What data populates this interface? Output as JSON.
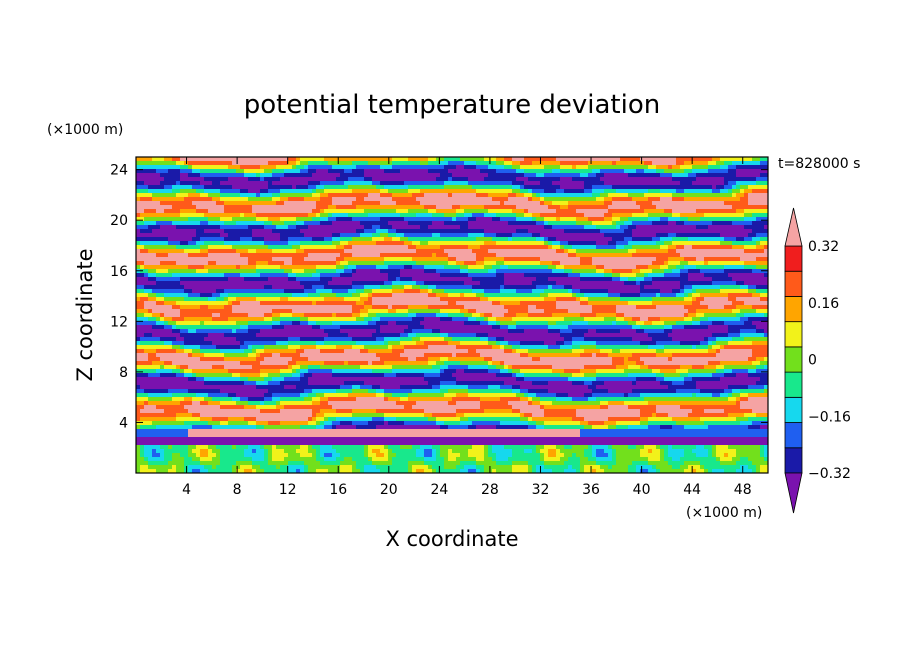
{
  "chart_data": {
    "type": "heatmap",
    "title": "potential temperature deviation",
    "xlabel": "X coordinate",
    "ylabel": "Z coordinate",
    "x_unit": "(×1000 m)",
    "y_unit": "(×1000 m)",
    "time_label": "t=828000 s",
    "xlim": [
      0,
      50
    ],
    "ylim": [
      0,
      25
    ],
    "x_ticks": [
      "4",
      "8",
      "12",
      "16",
      "20",
      "24",
      "28",
      "32",
      "36",
      "40",
      "44",
      "48"
    ],
    "y_ticks": [
      "4",
      "8",
      "12",
      "16",
      "20",
      "24"
    ],
    "colorbar": {
      "levels": [
        -0.4,
        -0.32,
        -0.24,
        -0.16,
        -0.08,
        0,
        0.08,
        0.16,
        0.24,
        0.32,
        0.4
      ],
      "labels": [
        "0.32",
        "0.16",
        "0",
        "−0.16",
        "−0.32"
      ],
      "label_values": [
        0.32,
        0.16,
        0,
        -0.16,
        -0.32
      ],
      "extend": "both",
      "colors": [
        "#7a12ae",
        "#1a1aa8",
        "#1f5ff0",
        "#16d8ee",
        "#18e88c",
        "#72e01c",
        "#f2f21a",
        "#ffa500",
        "#ff5a1a",
        "#f01e1e",
        "#f5a3a3"
      ]
    }
  }
}
